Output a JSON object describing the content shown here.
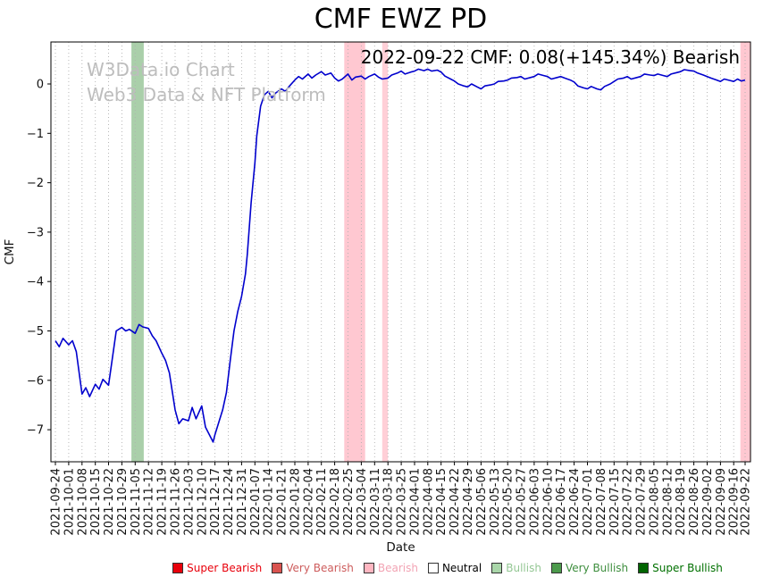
{
  "header": {
    "title": "CMF EWZ PD"
  },
  "watermark": {
    "line1": "W3Data.io Chart",
    "line2": "Web3 Data & NFT Platform"
  },
  "annotation": {
    "text": "2022-09-22 CMF: 0.08(+145.34%) Bearish"
  },
  "axes": {
    "x_label": "Date",
    "y_label": "CMF"
  },
  "legend": {
    "items": [
      {
        "label": "Super Bearish",
        "swatch": "#e8000b",
        "text_color": "#e8000b"
      },
      {
        "label": "Very Bearish",
        "swatch": "#d9534f",
        "text_color": "#cd5c5c"
      },
      {
        "label": "Bearish",
        "swatch": "#ffb6c1",
        "text_color": "#f2a4b4"
      },
      {
        "label": "Neutral",
        "swatch": "#ffffff",
        "text_color": "#000000"
      },
      {
        "label": "Bullish",
        "swatch": "#a9d6a9",
        "text_color": "#94c794"
      },
      {
        "label": "Very Bullish",
        "swatch": "#4c9a4c",
        "text_color": "#3e8e3e"
      },
      {
        "label": "Super Bullish",
        "swatch": "#006400",
        "text_color": "#007000"
      }
    ]
  },
  "chart_data": {
    "type": "line",
    "title": "CMF EWZ PD",
    "xlabel": "Date",
    "ylabel": "CMF",
    "x_start_date": "2021-09-24",
    "x_total_days": 363,
    "ylim": [
      -7.65,
      0.85
    ],
    "grid": "vertical-dotted",
    "grid_color": "#b0b0b0",
    "line_color": "#0000cd",
    "latest": {
      "date": "2022-09-22",
      "value": 0.08,
      "change_pct": "+145.34%",
      "signal": "Bearish"
    },
    "y_ticks": [
      0,
      -1,
      -2,
      -3,
      -4,
      -5,
      -6,
      -7
    ],
    "y_tick_labels": [
      "0",
      "−1",
      "−2",
      "−3",
      "−4",
      "−5",
      "−6",
      "−7"
    ],
    "x_tick_days": [
      0,
      7,
      14,
      21,
      28,
      35,
      42,
      49,
      56,
      63,
      70,
      77,
      84,
      91,
      98,
      105,
      112,
      119,
      126,
      133,
      140,
      147,
      154,
      161,
      168,
      175,
      182,
      189,
      196,
      203,
      210,
      217,
      224,
      231,
      238,
      245,
      252,
      259,
      266,
      273,
      280,
      287,
      294,
      301,
      308,
      315,
      322,
      329,
      336,
      343,
      350,
      357,
      363
    ],
    "x_tick_labels": [
      "2021-09-24",
      "2021-10-01",
      "2021-10-08",
      "2021-10-15",
      "2021-10-22",
      "2021-10-29",
      "2021-11-05",
      "2021-11-12",
      "2021-11-19",
      "2021-11-26",
      "2021-12-03",
      "2021-12-10",
      "2021-12-17",
      "2021-12-24",
      "2021-12-31",
      "2022-01-07",
      "2022-01-14",
      "2022-01-21",
      "2022-01-28",
      "2022-02-04",
      "2022-02-11",
      "2022-02-18",
      "2022-02-25",
      "2022-03-04",
      "2022-03-11",
      "2022-03-18",
      "2022-03-25",
      "2022-04-01",
      "2022-04-08",
      "2022-04-15",
      "2022-04-22",
      "2022-04-29",
      "2022-05-06",
      "2022-05-13",
      "2022-05-20",
      "2022-05-27",
      "2022-06-03",
      "2022-06-10",
      "2022-06-17",
      "2022-06-24",
      "2022-07-01",
      "2022-07-08",
      "2022-07-15",
      "2022-07-22",
      "2022-07-29",
      "2022-08-05",
      "2022-08-12",
      "2022-08-19",
      "2022-08-26",
      "2022-09-02",
      "2022-09-09",
      "2022-09-16",
      "2022-09-22"
    ],
    "bands": [
      {
        "x0": 40,
        "x1": 46.5,
        "color": "#55a055",
        "opacity": 0.5,
        "signal": "very-bullish"
      },
      {
        "x0": 152,
        "x1": 163,
        "color": "#ffb6c1",
        "opacity": 0.75,
        "signal": "bearish"
      },
      {
        "x0": 172,
        "x1": 175,
        "color": "#ffb6c1",
        "opacity": 0.65,
        "signal": "bearish"
      },
      {
        "x0": 360.5,
        "x1": 366,
        "color": "#ffb6c1",
        "opacity": 0.75,
        "signal": "bearish"
      }
    ],
    "series": [
      {
        "name": "CMF",
        "points": [
          [
            0,
            -5.2
          ],
          [
            2,
            -5.32
          ],
          [
            4,
            -5.15
          ],
          [
            7,
            -5.28
          ],
          [
            9,
            -5.2
          ],
          [
            11,
            -5.42
          ],
          [
            14,
            -6.28
          ],
          [
            16,
            -6.15
          ],
          [
            18,
            -6.33
          ],
          [
            21,
            -6.08
          ],
          [
            23,
            -6.18
          ],
          [
            25,
            -5.98
          ],
          [
            28,
            -6.1
          ],
          [
            30,
            -5.55
          ],
          [
            32,
            -5.0
          ],
          [
            35,
            -4.93
          ],
          [
            37,
            -5.0
          ],
          [
            39,
            -4.97
          ],
          [
            42,
            -5.05
          ],
          [
            44,
            -4.87
          ],
          [
            46,
            -4.92
          ],
          [
            49,
            -4.95
          ],
          [
            51,
            -5.1
          ],
          [
            53,
            -5.2
          ],
          [
            56,
            -5.45
          ],
          [
            58,
            -5.6
          ],
          [
            60,
            -5.85
          ],
          [
            63,
            -6.6
          ],
          [
            65,
            -6.88
          ],
          [
            67,
            -6.78
          ],
          [
            70,
            -6.82
          ],
          [
            72,
            -6.55
          ],
          [
            74,
            -6.78
          ],
          [
            77,
            -6.52
          ],
          [
            79,
            -6.95
          ],
          [
            81,
            -7.1
          ],
          [
            83,
            -7.25
          ],
          [
            84,
            -7.1
          ],
          [
            86,
            -6.85
          ],
          [
            88,
            -6.6
          ],
          [
            90,
            -6.25
          ],
          [
            92,
            -5.6
          ],
          [
            94,
            -5.0
          ],
          [
            96,
            -4.6
          ],
          [
            98,
            -4.3
          ],
          [
            100,
            -3.85
          ],
          [
            101,
            -3.45
          ],
          [
            103,
            -2.4
          ],
          [
            105,
            -1.6
          ],
          [
            106,
            -1.05
          ],
          [
            108,
            -0.45
          ],
          [
            110,
            -0.22
          ],
          [
            112,
            -0.15
          ],
          [
            114,
            -0.28
          ],
          [
            116,
            -0.18
          ],
          [
            119,
            -0.1
          ],
          [
            121,
            -0.15
          ],
          [
            123,
            -0.05
          ],
          [
            126,
            0.08
          ],
          [
            128,
            0.15
          ],
          [
            130,
            0.1
          ],
          [
            133,
            0.2
          ],
          [
            135,
            0.12
          ],
          [
            137,
            0.18
          ],
          [
            140,
            0.25
          ],
          [
            142,
            0.18
          ],
          [
            145,
            0.22
          ],
          [
            147,
            0.12
          ],
          [
            149,
            0.06
          ],
          [
            151,
            0.1
          ],
          [
            154,
            0.2
          ],
          [
            156,
            0.08
          ],
          [
            158,
            0.14
          ],
          [
            161,
            0.16
          ],
          [
            163,
            0.1
          ],
          [
            165,
            0.15
          ],
          [
            168,
            0.2
          ],
          [
            170,
            0.14
          ],
          [
            172,
            0.1
          ],
          [
            175,
            0.12
          ],
          [
            177,
            0.18
          ],
          [
            180,
            0.22
          ],
          [
            182,
            0.26
          ],
          [
            184,
            0.2
          ],
          [
            187,
            0.24
          ],
          [
            189,
            0.26
          ],
          [
            191,
            0.3
          ],
          [
            194,
            0.27
          ],
          [
            196,
            0.3
          ],
          [
            198,
            0.26
          ],
          [
            201,
            0.28
          ],
          [
            203,
            0.24
          ],
          [
            205,
            0.16
          ],
          [
            208,
            0.1
          ],
          [
            210,
            0.06
          ],
          [
            212,
            0.0
          ],
          [
            215,
            -0.04
          ],
          [
            217,
            -0.06
          ],
          [
            219,
            0.0
          ],
          [
            222,
            -0.06
          ],
          [
            224,
            -0.1
          ],
          [
            226,
            -0.04
          ],
          [
            229,
            -0.02
          ],
          [
            231,
            0.0
          ],
          [
            233,
            0.05
          ],
          [
            236,
            0.06
          ],
          [
            238,
            0.08
          ],
          [
            240,
            0.12
          ],
          [
            243,
            0.13
          ],
          [
            245,
            0.15
          ],
          [
            247,
            0.1
          ],
          [
            250,
            0.13
          ],
          [
            252,
            0.15
          ],
          [
            254,
            0.2
          ],
          [
            257,
            0.17
          ],
          [
            259,
            0.15
          ],
          [
            261,
            0.1
          ],
          [
            264,
            0.13
          ],
          [
            266,
            0.15
          ],
          [
            268,
            0.12
          ],
          [
            271,
            0.08
          ],
          [
            273,
            0.04
          ],
          [
            275,
            -0.04
          ],
          [
            278,
            -0.08
          ],
          [
            280,
            -0.1
          ],
          [
            282,
            -0.05
          ],
          [
            285,
            -0.1
          ],
          [
            287,
            -0.12
          ],
          [
            289,
            -0.05
          ],
          [
            292,
            0.0
          ],
          [
            294,
            0.05
          ],
          [
            296,
            0.1
          ],
          [
            299,
            0.12
          ],
          [
            301,
            0.15
          ],
          [
            303,
            0.1
          ],
          [
            306,
            0.13
          ],
          [
            308,
            0.15
          ],
          [
            310,
            0.2
          ],
          [
            313,
            0.18
          ],
          [
            315,
            0.17
          ],
          [
            317,
            0.2
          ],
          [
            320,
            0.17
          ],
          [
            322,
            0.15
          ],
          [
            324,
            0.2
          ],
          [
            327,
            0.23
          ],
          [
            329,
            0.25
          ],
          [
            331,
            0.29
          ],
          [
            334,
            0.27
          ],
          [
            336,
            0.26
          ],
          [
            338,
            0.22
          ],
          [
            341,
            0.18
          ],
          [
            343,
            0.15
          ],
          [
            345,
            0.12
          ],
          [
            348,
            0.08
          ],
          [
            350,
            0.05
          ],
          [
            352,
            0.1
          ],
          [
            355,
            0.07
          ],
          [
            357,
            0.05
          ],
          [
            359,
            0.1
          ],
          [
            361,
            0.06
          ],
          [
            363,
            0.08
          ]
        ]
      }
    ]
  }
}
